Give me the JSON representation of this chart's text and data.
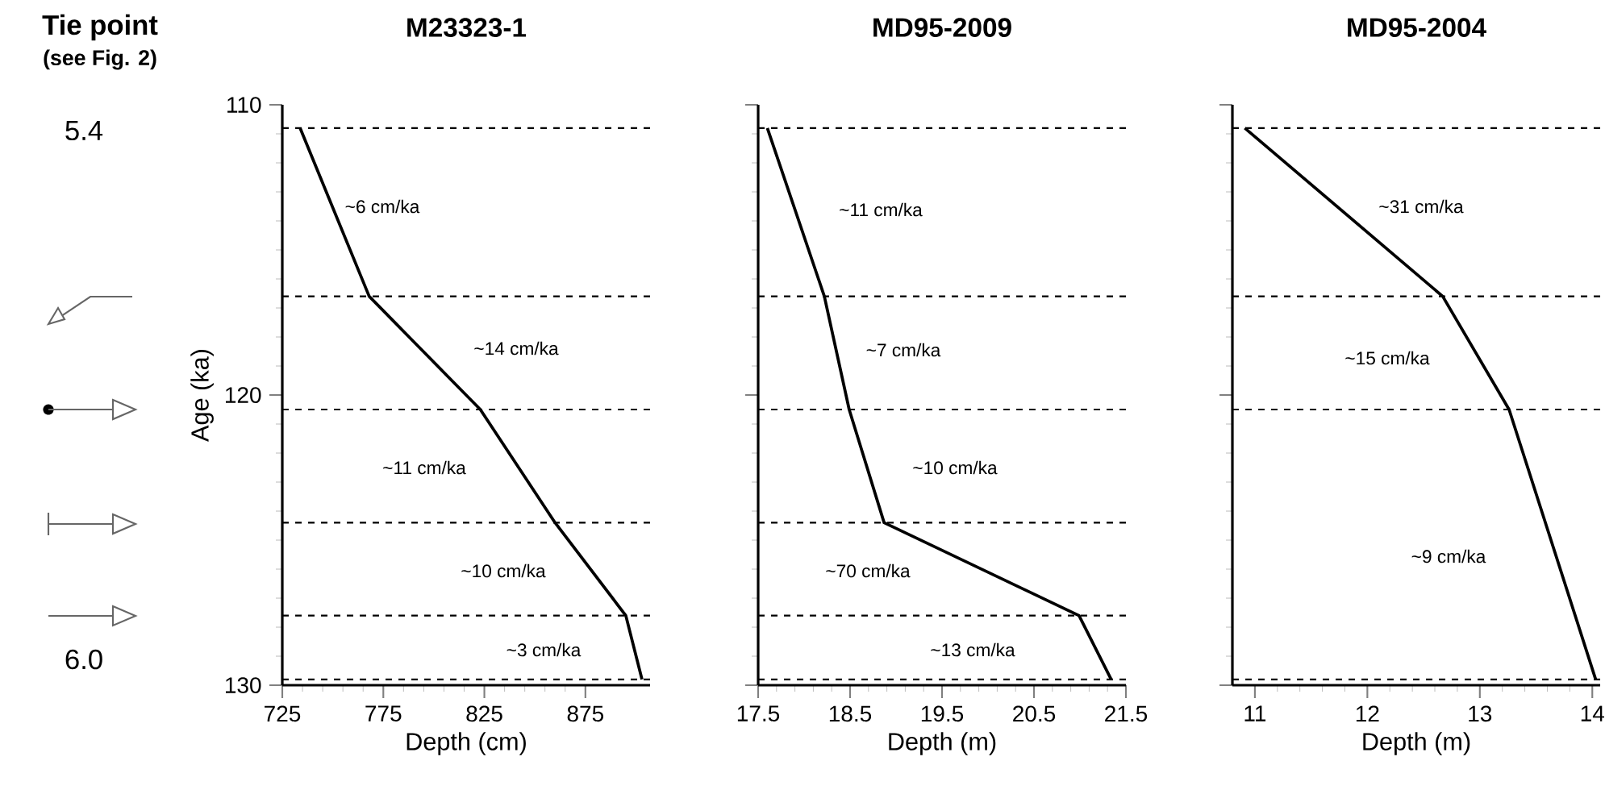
{
  "chart_data": [
    {
      "type": "line",
      "title": "M23323-1",
      "xlabel": "Depth (cm)",
      "ylabel": "Age (ka)",
      "series": [
        {
          "color": "#000000",
          "x": [
            733.8,
            768,
            823,
            860,
            895,
            903
          ],
          "values": [
            110.8,
            116.6,
            120.5,
            124.4,
            127.6,
            129.8
          ]
        }
      ],
      "xlim": [
        725,
        907
      ],
      "xticks": [
        725,
        775,
        825,
        875
      ],
      "ylim": [
        130,
        110
      ],
      "yticks": [
        110,
        120,
        130
      ],
      "ref_lines": [
        {
          "axis": "y",
          "value": 110.8,
          "color": "#000000",
          "line_style": "dashed"
        },
        {
          "axis": "y",
          "value": 116.6,
          "color": "#000000",
          "line_style": "dashed"
        },
        {
          "axis": "y",
          "value": 120.5,
          "color": "#000000",
          "line_style": "dashed"
        },
        {
          "axis": "y",
          "value": 124.4,
          "color": "#000000",
          "line_style": "dashed"
        },
        {
          "axis": "y",
          "value": 127.6,
          "color": "#000000",
          "line_style": "dashed"
        },
        {
          "axis": "y",
          "value": 129.8,
          "color": "#000000",
          "line_style": "dashed"
        }
      ],
      "annotations": [
        "~6 cm/ka",
        "~14 cm/ka",
        "~11 cm/ka",
        "~10 cm/ka",
        "~3 cm/ka",
        "Tie point",
        "(see Fig. 2)",
        "5.4",
        "6.0"
      ]
    },
    {
      "type": "line",
      "title": "MD95-2009",
      "xlabel": "Depth (m)",
      "series": [
        {
          "color": "#000000",
          "x": [
            17.6,
            18.22,
            18.49,
            18.87,
            20.99,
            21.34
          ],
          "values": [
            110.8,
            116.6,
            120.5,
            124.4,
            127.6,
            129.8
          ]
        }
      ],
      "xlim": [
        17.5,
        21.5
      ],
      "xticks": [
        17.5,
        18.5,
        19.5,
        20.5,
        21.5
      ],
      "ylim": [
        130,
        110
      ],
      "yticks": [
        110,
        120,
        130
      ],
      "tick_labels": "x",
      "ref_lines": [
        {
          "axis": "y",
          "value": 110.8,
          "color": "#000000",
          "line_style": "dashed"
        },
        {
          "axis": "y",
          "value": 116.6,
          "color": "#000000",
          "line_style": "dashed"
        },
        {
          "axis": "y",
          "value": 120.5,
          "color": "#000000",
          "line_style": "dashed"
        },
        {
          "axis": "y",
          "value": 124.4,
          "color": "#000000",
          "line_style": "dashed"
        },
        {
          "axis": "y",
          "value": 127.6,
          "color": "#000000",
          "line_style": "dashed"
        },
        {
          "axis": "y",
          "value": 129.8,
          "color": "#000000",
          "line_style": "dashed"
        }
      ],
      "annotations": [
        "~11 cm/ka",
        "~7 cm/ka",
        "~10 cm/ka",
        "~70 cm/ka",
        "~13 cm/ka"
      ]
    },
    {
      "type": "line",
      "title": "MD95-2004",
      "xlabel": "Depth (m)",
      "series": [
        {
          "color": "#000000",
          "x": [
            10.91,
            12.67,
            13.26,
            14.03
          ],
          "values": [
            110.8,
            116.6,
            120.5,
            129.8
          ]
        }
      ],
      "xlim": [
        10.8,
        14.07
      ],
      "xticks": [
        11,
        12,
        13,
        14
      ],
      "ylim": [
        130,
        110
      ],
      "yticks": [
        110,
        120,
        130
      ],
      "tick_labels": "x",
      "ref_lines": [
        {
          "axis": "y",
          "value": 110.8,
          "color": "#000000",
          "line_style": "dashed"
        },
        {
          "axis": "y",
          "value": 116.6,
          "color": "#000000",
          "line_style": "dashed"
        },
        {
          "axis": "y",
          "value": 120.5,
          "color": "#000000",
          "line_style": "dashed"
        },
        {
          "axis": "y",
          "value": 129.8,
          "color": "#000000",
          "line_style": "dashed"
        }
      ],
      "annotations": [
        "~31 cm/ka",
        "~15 cm/ka",
        "~9 cm/ka"
      ]
    }
  ]
}
